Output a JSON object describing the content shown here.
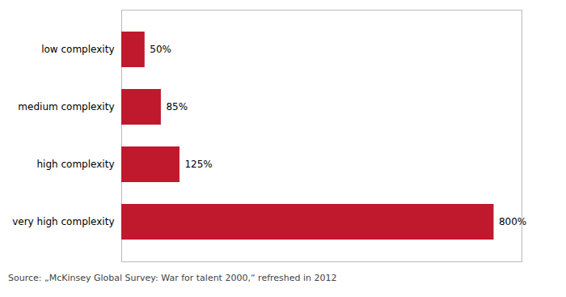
{
  "chart_data": {
    "type": "bar",
    "orientation": "horizontal",
    "categories": [
      "low complexity",
      "medium complexity",
      "high complexity",
      "very high complexity"
    ],
    "values": [
      50,
      85,
      125,
      800
    ],
    "value_labels": [
      "50%",
      "85%",
      "125%",
      "800%"
    ],
    "data_labels": true,
    "color": "#c0182d",
    "xlim": [
      0,
      860
    ],
    "tick_labels": "y",
    "grid": false,
    "caption": "Source: „McKinsey Global Survey: War for talent 2000,“ refreshed in 2012"
  }
}
